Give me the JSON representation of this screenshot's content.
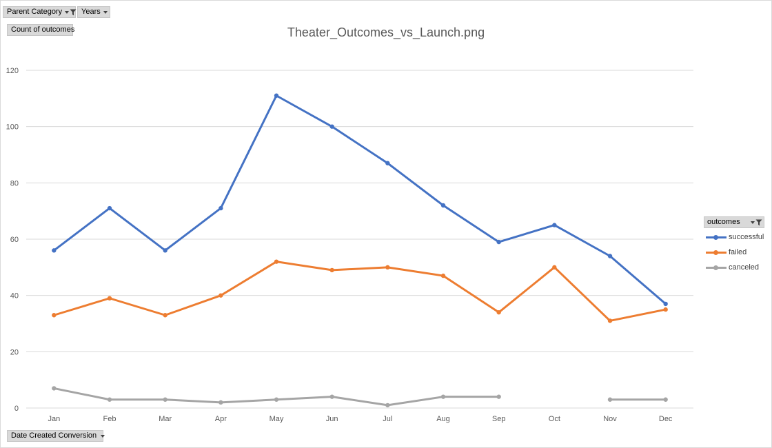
{
  "filters": {
    "parent_category": "Parent Category",
    "years": "Years",
    "value_field": "Count of outcomes",
    "axis_field": "Date Created Conversion"
  },
  "colors": {
    "successful": "#4472C4",
    "failed": "#ED7D31",
    "canceled": "#A5A5A5"
  },
  "icons": {
    "dropdown": "chevron-down-icon",
    "filter": "funnel-icon"
  },
  "chart_data": {
    "type": "line",
    "title": "Theater_Outcomes_vs_Launch.png",
    "xlabel": "",
    "ylabel": "",
    "categories": [
      "Jan",
      "Feb",
      "Mar",
      "Apr",
      "May",
      "Jun",
      "Jul",
      "Aug",
      "Sep",
      "Oct",
      "Nov",
      "Dec"
    ],
    "ylim": [
      0,
      120
    ],
    "yticks": [
      0,
      20,
      40,
      60,
      80,
      100,
      120
    ],
    "grid": true,
    "legend_title": "outcomes",
    "legend_position": "right",
    "series": [
      {
        "name": "successful",
        "values": [
          56,
          71,
          56,
          71,
          111,
          100,
          87,
          72,
          59,
          65,
          54,
          37
        ]
      },
      {
        "name": "failed",
        "values": [
          33,
          39,
          33,
          40,
          52,
          49,
          50,
          47,
          34,
          50,
          31,
          35
        ]
      },
      {
        "name": "canceled",
        "values": [
          7,
          3,
          3,
          2,
          3,
          4,
          1,
          4,
          4,
          null,
          3,
          3
        ]
      }
    ]
  }
}
